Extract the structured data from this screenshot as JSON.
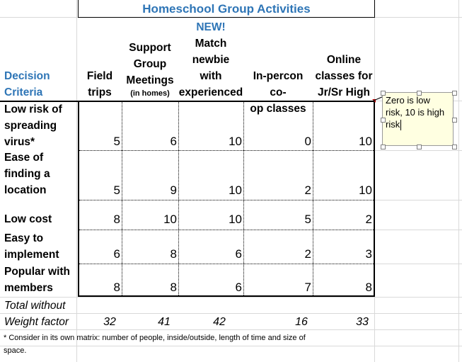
{
  "sheet": {
    "title": "Homeschool Group Activities",
    "header": {
      "decision_line1": "Decision",
      "decision_line2": "Criteria",
      "field_line1": "Field",
      "field_line2": "trips",
      "support_line1": "Support",
      "support_line2": "Group",
      "support_line3": "Meetings",
      "support_line4": "(in homes)",
      "match_new": "NEW!",
      "match_line1": "Match",
      "match_line2": "newbie",
      "match_line3": "with",
      "match_line4": "experienced",
      "inperson_line1": "In-percon co-",
      "inperson_line2": "op classes",
      "online_line1": "Online",
      "online_line2": "classes for",
      "online_line3": "Jr/Sr High"
    },
    "rows": [
      {
        "label_lines": [
          "Low risk of",
          "spreading",
          "virus*"
        ],
        "values": [
          "5",
          "6",
          "10",
          "0",
          "10"
        ]
      },
      {
        "label_lines": [
          "Ease of",
          "finding a",
          "location"
        ],
        "values": [
          "5",
          "9",
          "10",
          "2",
          "10"
        ]
      },
      {
        "label_lines": [
          "Low cost"
        ],
        "values": [
          "8",
          "10",
          "10",
          "5",
          "2"
        ]
      },
      {
        "label_lines": [
          "Easy to",
          "implement"
        ],
        "values": [
          "6",
          "8",
          "6",
          "2",
          "3"
        ]
      },
      {
        "label_lines": [
          "Popular with",
          "members"
        ],
        "values": [
          "8",
          "8",
          "6",
          "7",
          "8"
        ]
      }
    ],
    "total": {
      "label_line1": "Total without",
      "label_line2": "Weight factor",
      "values": [
        "32",
        "41",
        "42",
        "16",
        "33"
      ]
    },
    "footnote_line1": "* Consider in its own matrix: number of people, inside/outside, length of time and size of",
    "footnote_line2": "space."
  },
  "comment": {
    "text_line1": "Zero is low",
    "text_line2": "risk, 10 is high",
    "text_line3": "risk"
  },
  "colors": {
    "accent": "#2e75b6",
    "comment_bg": "#ffffe1",
    "indicator": "#c00000"
  }
}
